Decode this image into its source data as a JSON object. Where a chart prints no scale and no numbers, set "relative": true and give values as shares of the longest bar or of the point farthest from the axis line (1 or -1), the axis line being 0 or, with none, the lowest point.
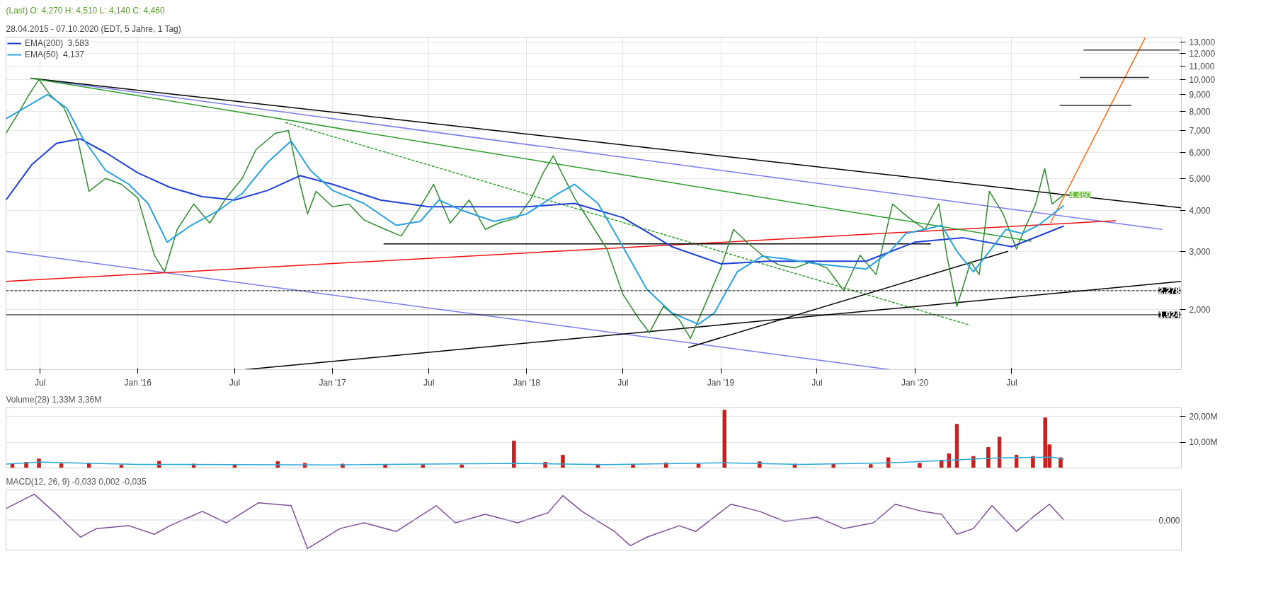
{
  "chart_data": [
    {
      "type": "line",
      "title": "(Last)  O: 4,270  H: 4,510  L: 4,140  C: 4,460",
      "annotations": [
        "28.04.2015 - 07.10.2020  (EDT, 5 Jahre, 1 Tag)",
        {
          "text": "4,460",
          "x": "2020-10-07",
          "y": 4.46
        }
      ],
      "log": "y",
      "grid": true,
      "legend": "top left",
      "xlim": [
        "2015-04-28",
        "2021-05-16"
      ],
      "xticks": [
        {
          "value": "2015-07-01",
          "label": "Jul"
        },
        {
          "value": "2016-01-01",
          "label": "Jan '16"
        },
        {
          "value": "2016-07-01",
          "label": "Jul"
        },
        {
          "value": "2017-01-01",
          "label": "Jan '17"
        },
        {
          "value": "2017-07-01",
          "label": "Jul"
        },
        {
          "value": "2018-01-01",
          "label": "Jan '18"
        },
        {
          "value": "2018-07-01",
          "label": "Jul"
        },
        {
          "value": "2019-01-01",
          "label": "Jan '19"
        },
        {
          "value": "2019-07-01",
          "label": "Jul"
        },
        {
          "value": "2020-01-01",
          "label": "Jan '20"
        },
        {
          "value": "2020-07-01",
          "label": "Jul"
        }
      ],
      "ylim": [
        1.31,
        13.46
      ],
      "yticks": [
        {
          "value": 2,
          "label": "2,000"
        },
        {
          "value": 3,
          "label": "3,000"
        },
        {
          "value": 4,
          "label": "4,000"
        },
        {
          "value": 5,
          "label": "5,000"
        },
        {
          "value": 6,
          "label": "6,000"
        },
        {
          "value": 7,
          "label": "7,000"
        },
        {
          "value": 8,
          "label": "8,000"
        },
        {
          "value": 9,
          "label": "9,000"
        },
        {
          "value": 10,
          "label": "10,000"
        },
        {
          "value": 11,
          "label": "11,000"
        },
        {
          "value": 12,
          "label": "12,000"
        },
        {
          "value": 13,
          "label": "13,000"
        }
      ],
      "ref_lines": [
        {
          "axis": "y",
          "value": 2.278,
          "label": "2,278",
          "color": "#000000",
          "line_style": "dashed"
        },
        {
          "axis": "y",
          "value": 1.924,
          "label": "1,924",
          "color": "#000000",
          "line_style": "solid"
        }
      ],
      "series": [
        {
          "color": "#7b7bf0",
          "x": [
            "2015-06-13",
            "2021-04-10"
          ],
          "values": [
            10.1,
            3.5
          ]
        },
        {
          "color": "#7b7bf0",
          "x": [
            "2015-04-28",
            "2019-11-15"
          ],
          "values": [
            3.0,
            1.31
          ]
        },
        {
          "color": "#000000",
          "x": [
            "2015-06-13",
            "2021-05-16"
          ],
          "values": [
            10.1,
            4.07
          ]
        },
        {
          "color": "#ee1111",
          "x": [
            "2015-04-28",
            "2021-01-13"
          ],
          "values": [
            2.43,
            3.72
          ]
        },
        {
          "color": "#2e9e2e",
          "x": [
            "2015-06-13",
            "2020-08-07"
          ],
          "values": [
            10.1,
            3.22
          ]
        },
        {
          "color": "#2e9e2e",
          "line_style": "dashed",
          "x": [
            "2016-10-04",
            "2020-04-13"
          ],
          "values": [
            7.4,
            1.79
          ]
        },
        {
          "color": "#000000",
          "x": [
            "2016-07-20",
            "2021-05-16"
          ],
          "values": [
            1.31,
            2.43
          ]
        },
        {
          "color": "#000000",
          "x": [
            "2017-04-07",
            "2020-01-31"
          ],
          "values": [
            3.16,
            3.16
          ]
        },
        {
          "color": "#000000",
          "x": [
            "2018-11-01",
            "2020-06-24"
          ],
          "values": [
            1.53,
            3.0
          ]
        },
        {
          "color": "#ff6a10",
          "x": [
            "2020-09-12",
            "2021-03-09"
          ],
          "values": [
            3.66,
            13.4
          ]
        },
        {
          "color": "#333333",
          "x": [
            "2020-09-29",
            "2021-02-11"
          ],
          "values": [
            8.34,
            8.34
          ]
        },
        {
          "color": "#333333",
          "x": [
            "2020-11-06",
            "2021-03-16"
          ],
          "values": [
            10.15,
            10.15
          ]
        },
        {
          "color": "#333333",
          "x": [
            "2020-11-13",
            "2021-05-13"
          ],
          "values": [
            12.3,
            12.3
          ]
        },
        {
          "color": "#2e8b2e",
          "x": [
            "2015-04-28",
            "2015-05-20",
            "2015-06-10",
            "2015-06-29",
            "2015-07-20",
            "2015-08-15",
            "2015-09-10",
            "2015-10-01",
            "2015-11-01",
            "2015-12-01",
            "2016-01-01",
            "2016-02-01",
            "2016-02-20",
            "2016-03-15",
            "2016-04-15",
            "2016-05-15",
            "2016-06-15",
            "2016-07-15",
            "2016-08-10",
            "2016-09-15",
            "2016-10-10",
            "2016-11-01",
            "2016-11-15",
            "2016-12-01",
            "2017-01-01",
            "2017-02-01",
            "2017-03-01",
            "2017-04-10",
            "2017-05-10",
            "2017-06-15",
            "2017-07-10",
            "2017-08-10",
            "2017-09-15",
            "2017-10-15",
            "2017-11-10",
            "2017-12-15",
            "2018-01-10",
            "2018-02-01",
            "2018-02-20",
            "2018-03-10",
            "2018-04-01",
            "2018-05-01",
            "2018-06-01",
            "2018-07-01",
            "2018-08-01",
            "2018-08-20",
            "2018-09-15",
            "2018-10-15",
            "2018-11-05",
            "2018-12-01",
            "2019-01-01",
            "2019-01-25",
            "2019-02-20",
            "2019-03-20",
            "2019-04-20",
            "2019-05-20",
            "2019-06-20",
            "2019-07-20",
            "2019-08-20",
            "2019-09-20",
            "2019-10-20",
            "2019-11-20",
            "2019-12-20",
            "2020-01-20",
            "2020-02-15",
            "2020-03-01",
            "2020-03-20",
            "2020-04-15",
            "2020-05-01",
            "2020-05-20",
            "2020-06-15",
            "2020-07-10",
            "2020-07-25",
            "2020-08-15",
            "2020-09-01",
            "2020-09-15",
            "2020-10-07"
          ],
          "values": [
            6.86,
            7.85,
            8.98,
            10.0,
            8.98,
            8.2,
            6.56,
            4.57,
            5.0,
            4.8,
            4.36,
            2.92,
            2.6,
            3.5,
            4.18,
            3.66,
            4.36,
            5.0,
            6.12,
            6.86,
            7.0,
            4.8,
            3.9,
            4.57,
            4.1,
            4.18,
            3.74,
            3.5,
            3.34,
            4.1,
            4.8,
            3.66,
            4.3,
            3.5,
            3.66,
            3.8,
            4.36,
            5.2,
            5.86,
            5.12,
            4.36,
            3.66,
            3.05,
            2.22,
            1.86,
            1.7,
            2.04,
            1.86,
            1.63,
            2.04,
            2.67,
            3.5,
            3.19,
            2.92,
            2.73,
            2.67,
            2.79,
            2.67,
            2.28,
            2.92,
            2.55,
            4.18,
            3.8,
            3.5,
            4.18,
            2.92,
            2.04,
            2.79,
            2.55,
            4.57,
            3.9,
            3.05,
            3.5,
            4.18,
            5.36,
            4.18,
            4.46
          ]
        },
        {
          "name": "EMA(200)  3,583",
          "color": "#1f3fd6",
          "x": [
            "2015-04-28",
            "2015-06-15",
            "2015-08-01",
            "2015-09-15",
            "2015-11-01",
            "2016-01-01",
            "2016-03-01",
            "2016-05-01",
            "2016-07-01",
            "2016-09-01",
            "2016-11-01",
            "2017-01-01",
            "2017-04-01",
            "2017-07-01",
            "2017-10-01",
            "2018-01-01",
            "2018-04-01",
            "2018-07-01",
            "2018-10-01",
            "2019-01-01",
            "2019-04-01",
            "2019-07-01",
            "2019-10-01",
            "2020-01-01",
            "2020-04-01",
            "2020-07-01",
            "2020-10-07"
          ],
          "values": [
            4.3,
            5.5,
            6.4,
            6.6,
            6.0,
            5.2,
            4.7,
            4.4,
            4.3,
            4.6,
            5.1,
            4.8,
            4.3,
            4.1,
            4.1,
            4.1,
            4.2,
            3.8,
            3.1,
            2.75,
            2.8,
            2.8,
            2.8,
            3.2,
            3.3,
            3.1,
            3.583
          ]
        },
        {
          "name": "EMA(50)  4,137",
          "color": "#29a3e0",
          "x": [
            "2015-04-28",
            "2015-07-15",
            "2015-08-20",
            "2015-09-20",
            "2015-11-01",
            "2015-12-15",
            "2016-01-20",
            "2016-02-25",
            "2016-04-10",
            "2016-06-01",
            "2016-07-15",
            "2016-09-01",
            "2016-10-15",
            "2016-11-20",
            "2017-01-01",
            "2017-03-01",
            "2017-05-01",
            "2017-06-15",
            "2017-07-20",
            "2017-09-01",
            "2017-11-01",
            "2018-01-01",
            "2018-03-01",
            "2018-04-01",
            "2018-05-15",
            "2018-07-01",
            "2018-08-15",
            "2018-10-01",
            "2018-11-20",
            "2018-12-20",
            "2019-02-01",
            "2019-03-20",
            "2019-05-01",
            "2019-07-01",
            "2019-08-15",
            "2019-10-01",
            "2019-11-15",
            "2019-12-15",
            "2020-01-20",
            "2020-02-20",
            "2020-03-20",
            "2020-04-20",
            "2020-05-20",
            "2020-06-20",
            "2020-07-20",
            "2020-08-20",
            "2020-10-07"
          ],
          "values": [
            7.6,
            9.0,
            8.2,
            6.6,
            5.3,
            4.8,
            4.2,
            3.2,
            3.6,
            4.0,
            4.5,
            5.6,
            6.5,
            5.3,
            4.6,
            4.2,
            3.6,
            3.7,
            4.3,
            4.0,
            3.7,
            3.9,
            4.5,
            4.8,
            4.2,
            3.1,
            2.3,
            1.95,
            1.8,
            1.95,
            2.6,
            2.9,
            2.85,
            2.75,
            2.7,
            2.65,
            3.0,
            3.4,
            3.5,
            3.6,
            3.0,
            2.6,
            3.0,
            3.5,
            3.4,
            3.6,
            4.137
          ]
        }
      ]
    },
    {
      "type": "bar",
      "title": "Volume(28)  1,33M  3,36M",
      "grid": "y",
      "xlim": [
        "2015-04-28",
        "2021-05-16"
      ],
      "ylim": [
        0,
        23.4
      ],
      "yticks": [
        {
          "value": 10,
          "label": "10,00M"
        },
        {
          "value": 20,
          "label": "20,00M"
        }
      ],
      "series": [
        {
          "color": "#c62020",
          "x": [
            "2015-05-10",
            "2015-06-05",
            "2015-06-29",
            "2015-08-10",
            "2015-10-01",
            "2015-12-01",
            "2016-02-10",
            "2016-04-15",
            "2016-07-01",
            "2016-09-20",
            "2016-11-10",
            "2017-01-20",
            "2017-04-10",
            "2017-06-20",
            "2017-09-01",
            "2017-12-08",
            "2018-02-05",
            "2018-03-10",
            "2018-05-15",
            "2018-07-20",
            "2018-09-20",
            "2018-11-20",
            "2019-01-08",
            "2019-03-15",
            "2019-05-20",
            "2019-08-01",
            "2019-10-10",
            "2019-11-12",
            "2020-01-10",
            "2020-02-20",
            "2020-03-05",
            "2020-03-20",
            "2020-04-20",
            "2020-05-18",
            "2020-06-08",
            "2020-07-10",
            "2020-08-10",
            "2020-09-02",
            "2020-09-10",
            "2020-10-01"
          ],
          "values": [
            1.5,
            2.2,
            3.5,
            1.6,
            1.8,
            1.2,
            2.6,
            1.5,
            1.4,
            2.5,
            1.8,
            1.5,
            1.1,
            1.3,
            1.2,
            10.5,
            2.2,
            5.0,
            1.3,
            1.4,
            2.0,
            1.5,
            22.5,
            2.4,
            1.5,
            1.6,
            1.3,
            4.0,
            1.8,
            3.0,
            5.5,
            17.0,
            4.5,
            8.0,
            12.0,
            5.0,
            4.5,
            19.5,
            9.0,
            4.0
          ]
        },
        {
          "type": "line",
          "color": "#29a8d8",
          "x": [
            "2015-04-28",
            "2015-07-01",
            "2016-01-01",
            "2017-01-01",
            "2017-12-15",
            "2018-06-01",
            "2019-01-10",
            "2019-06-01",
            "2019-11-15",
            "2020-03-20",
            "2020-06-15",
            "2020-09-15",
            "2020-10-07"
          ],
          "values": [
            1.5,
            2.3,
            1.4,
            1.2,
            1.8,
            1.3,
            2.0,
            1.4,
            2.0,
            3.2,
            4.0,
            4.2,
            3.4
          ]
        }
      ]
    },
    {
      "type": "line",
      "title": "MACD(12, 26, 9)  -0,033  0,002  -0,035",
      "relative": true,
      "xlim": [
        "2015-04-28",
        "2021-05-16"
      ],
      "ref_lines": [
        {
          "axis": "y",
          "value": 0,
          "label": "0,000",
          "color": "#cfd8e6",
          "line_style": "solid"
        }
      ],
      "series": [
        {
          "color": "#7b4f96",
          "x": [
            "2015-04-28",
            "2015-06-20",
            "2015-08-01",
            "2015-09-15",
            "2015-10-15",
            "2015-12-15",
            "2016-02-01",
            "2016-03-01",
            "2016-05-01",
            "2016-06-15",
            "2016-08-15",
            "2016-10-15",
            "2016-11-15",
            "2017-01-15",
            "2017-03-01",
            "2017-05-01",
            "2017-07-15",
            "2017-08-20",
            "2017-10-15",
            "2017-12-15",
            "2018-02-10",
            "2018-03-10",
            "2018-04-15",
            "2018-06-15",
            "2018-07-15",
            "2018-08-15",
            "2018-10-15",
            "2018-11-15",
            "2019-01-20",
            "2019-03-15",
            "2019-05-01",
            "2019-07-01",
            "2019-08-20",
            "2019-10-15",
            "2019-11-25",
            "2020-01-15",
            "2020-02-20",
            "2020-03-20",
            "2020-04-20",
            "2020-05-25",
            "2020-07-10",
            "2020-08-10",
            "2020-09-10",
            "2020-10-07"
          ],
          "values": [
            0.4,
            0.9,
            0.2,
            -0.6,
            -0.3,
            -0.2,
            -0.5,
            -0.2,
            0.3,
            -0.1,
            0.6,
            0.5,
            -1.0,
            -0.3,
            -0.1,
            -0.4,
            0.5,
            -0.1,
            0.2,
            -0.1,
            0.25,
            0.85,
            0.3,
            -0.4,
            -0.9,
            -0.6,
            -0.2,
            -0.4,
            0.55,
            0.3,
            -0.05,
            0.1,
            -0.3,
            -0.1,
            0.55,
            0.3,
            0.2,
            -0.5,
            -0.3,
            0.5,
            -0.4,
            0.1,
            0.55,
            0.0
          ]
        }
      ]
    }
  ]
}
